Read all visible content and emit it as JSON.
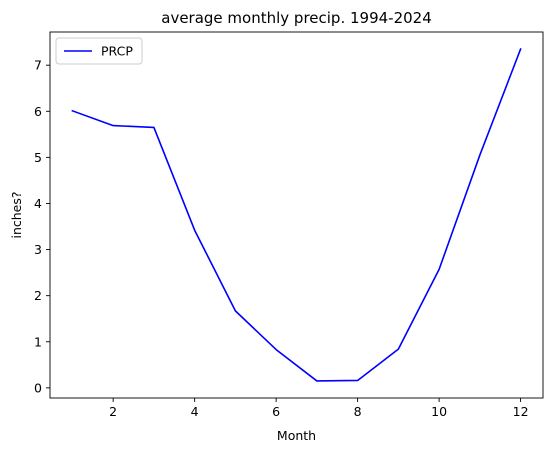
{
  "chart_data": {
    "type": "line",
    "title": "average monthly precip. 1994-2024",
    "xlabel": "Month",
    "ylabel": "inches?",
    "xlim": [
      0.45,
      12.55
    ],
    "ylim": [
      -0.22,
      7.72
    ],
    "x_ticks": [
      2,
      4,
      6,
      8,
      10,
      12
    ],
    "y_ticks": [
      0,
      1,
      2,
      3,
      4,
      5,
      6,
      7
    ],
    "grid": false,
    "legend_position": "upper-left",
    "series": [
      {
        "name": "PRCP",
        "color": "#0000ff",
        "x": [
          1,
          2,
          3,
          4,
          5,
          6,
          7,
          8,
          9,
          10,
          11,
          12
        ],
        "y": [
          6.01,
          5.69,
          5.65,
          3.42,
          1.67,
          0.83,
          0.15,
          0.16,
          0.84,
          2.57,
          5.05,
          7.35
        ]
      }
    ]
  }
}
